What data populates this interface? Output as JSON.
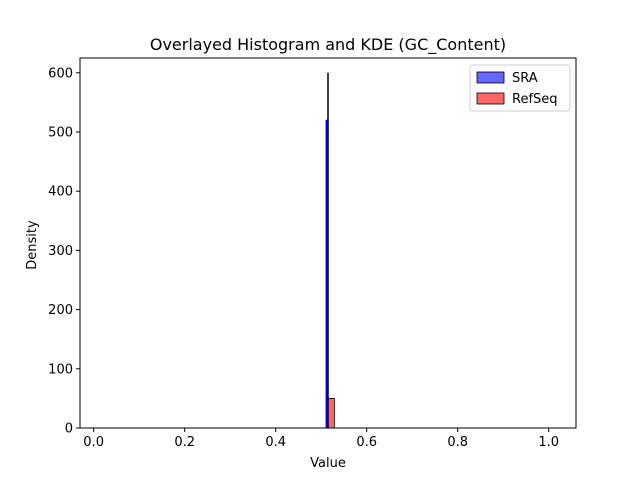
{
  "chart_data": {
    "type": "bar",
    "title": "Overlayed Histogram and KDE (GC_Content)",
    "xlabel": "Value",
    "ylabel": "Density",
    "xlim": [
      -0.03,
      1.06
    ],
    "ylim": [
      0,
      625
    ],
    "xticks": [
      0.0,
      0.2,
      0.4,
      0.6,
      0.8,
      1.0
    ],
    "xtick_labels": [
      "0.0",
      "0.2",
      "0.4",
      "0.6",
      "0.8",
      "1.0"
    ],
    "yticks": [
      0,
      100,
      200,
      300,
      400,
      500,
      600
    ],
    "ytick_labels": [
      "0",
      "100",
      "200",
      "300",
      "400",
      "500",
      "600"
    ],
    "grid": false,
    "legend_position": "top-right",
    "series": [
      {
        "name": "SRA",
        "kind": "histogram",
        "color": "#0000ff",
        "bins": [
          {
            "x0": 0.511,
            "x1": 0.514,
            "value": 520
          }
        ],
        "kde": [
          {
            "x": 0.5125,
            "y": 0
          },
          {
            "x": 0.5125,
            "y": 520
          }
        ]
      },
      {
        "name": "RefSeq",
        "kind": "histogram",
        "color": "#ff0000",
        "bins": [
          {
            "x0": 0.512,
            "x1": 0.529,
            "value": 50
          }
        ],
        "kde": [
          {
            "x": 0.515,
            "y": 0
          },
          {
            "x": 0.515,
            "y": 600
          }
        ]
      }
    ]
  }
}
